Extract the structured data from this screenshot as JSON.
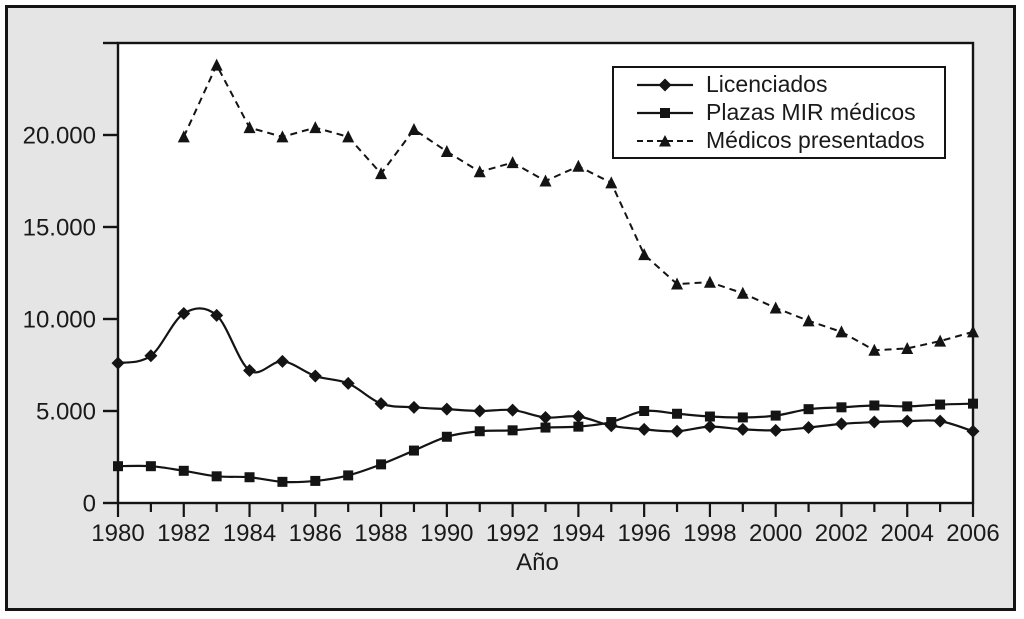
{
  "figure": {
    "xlabel": "Año",
    "colors": {
      "line": "#141414",
      "text": "#1a1a1a",
      "figure_bg": "#e5e5e5",
      "plot_bg": "#ffffff",
      "border": "#141414"
    }
  },
  "chart_data": {
    "type": "line",
    "title": "",
    "xlabel": "Año",
    "ylabel": "",
    "legend_position": "top-right",
    "grid": false,
    "xlim": [
      1980,
      2006
    ],
    "ylim": [
      0,
      25000
    ],
    "xtick_step": 2,
    "ytick_interval": 5000,
    "ytick_values": [
      0,
      5000,
      10000,
      15000,
      20000
    ],
    "ytick_labels": [
      "0",
      "5.000",
      "10.000",
      "15.000",
      "20.000"
    ],
    "xtick_labels": [
      "1980",
      "1982",
      "1984",
      "1986",
      "1988",
      "1990",
      "1992",
      "1994",
      "1996",
      "1998",
      "2000",
      "2002",
      "2004",
      "2006"
    ],
    "x": [
      1980,
      1981,
      1982,
      1983,
      1984,
      1985,
      1986,
      1987,
      1988,
      1989,
      1990,
      1991,
      1992,
      1993,
      1994,
      1995,
      1996,
      1997,
      1998,
      1999,
      2000,
      2001,
      2002,
      2003,
      2004,
      2005,
      2006
    ],
    "series": [
      {
        "name": "Licenciados",
        "marker": "diamond",
        "line": "solid",
        "smooth": true,
        "values": [
          7600,
          8000,
          10300,
          10200,
          7200,
          7700,
          6900,
          6500,
          5400,
          5200,
          5100,
          5000,
          5050,
          4650,
          4700,
          4200,
          4000,
          3900,
          4150,
          4000,
          3950,
          4100,
          4300,
          4400,
          4450,
          4450,
          3900
        ]
      },
      {
        "name": "Plazas MIR médicos",
        "marker": "square",
        "line": "solid",
        "smooth": true,
        "values": [
          2000,
          2000,
          1750,
          1450,
          1400,
          1150,
          1200,
          1500,
          2100,
          2850,
          3600,
          3900,
          3950,
          4100,
          4150,
          4400,
          5000,
          4850,
          4700,
          4650,
          4750,
          5100,
          5200,
          5300,
          5250,
          5350,
          5400
        ]
      },
      {
        "name": "Médicos presentados",
        "marker": "triangle",
        "line": "dashed",
        "smooth": false,
        "values": [
          null,
          null,
          19900,
          23800,
          20400,
          19900,
          20400,
          19900,
          17900,
          20300,
          19100,
          18000,
          18500,
          17500,
          18300,
          17400,
          13500,
          11900,
          12000,
          11400,
          10600,
          9900,
          9300,
          8300,
          8400,
          8800,
          9300
        ]
      }
    ]
  }
}
